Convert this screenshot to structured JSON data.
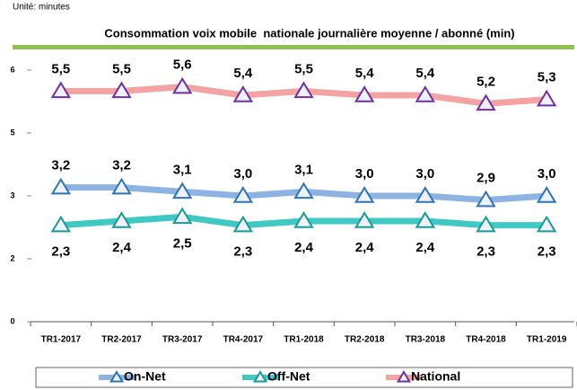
{
  "chart_data": {
    "type": "line",
    "unit_label": "Unité: minutes",
    "title": "Consommation voix mobile  nationale journalière moyenne / abonné (min)",
    "categories": [
      "TR1-2017",
      "TR2-2017",
      "TR3-2017",
      "TR4-2017",
      "TR1-2018",
      "TR2-2018",
      "TR3-2018",
      "TR4-2018",
      "TR1-2019"
    ],
    "series": [
      {
        "name": "On-Net",
        "color": "#8db3e2",
        "marker_color": "#2e75b6",
        "label_position": "above",
        "values": [
          3.2,
          3.2,
          3.1,
          3.0,
          3.1,
          3.0,
          3.0,
          2.9,
          3.0
        ],
        "value_labels": [
          "3,2",
          "3,2",
          "3,1",
          "3,0",
          "3,1",
          "3,0",
          "3,0",
          "2,9",
          "3,0"
        ]
      },
      {
        "name": "Off-Net",
        "color": "#40c8c4",
        "marker_color": "#1a9a96",
        "label_position": "below",
        "values": [
          2.3,
          2.4,
          2.5,
          2.3,
          2.4,
          2.4,
          2.4,
          2.3,
          2.3
        ],
        "value_labels": [
          "2,3",
          "2,4",
          "2,5",
          "2,3",
          "2,4",
          "2,4",
          "2,4",
          "2,3",
          "2,3"
        ]
      },
      {
        "name": "National",
        "color": "#f4a3a3",
        "marker_color": "#7030a0",
        "label_position": "above",
        "values": [
          5.5,
          5.5,
          5.6,
          5.4,
          5.5,
          5.4,
          5.4,
          5.2,
          5.3
        ],
        "value_labels": [
          "5,5",
          "5,5",
          "5,6",
          "5,4",
          "5,5",
          "5,4",
          "5,4",
          "5,2",
          "5,3"
        ]
      }
    ],
    "ylim": [
      0,
      6
    ],
    "yticks": [
      0,
      {
        "value": 1.5,
        "label": "2"
      },
      3,
      {
        "value": 4.5,
        "label": "5"
      },
      6
    ],
    "grid": false,
    "legend": "bottom"
  }
}
